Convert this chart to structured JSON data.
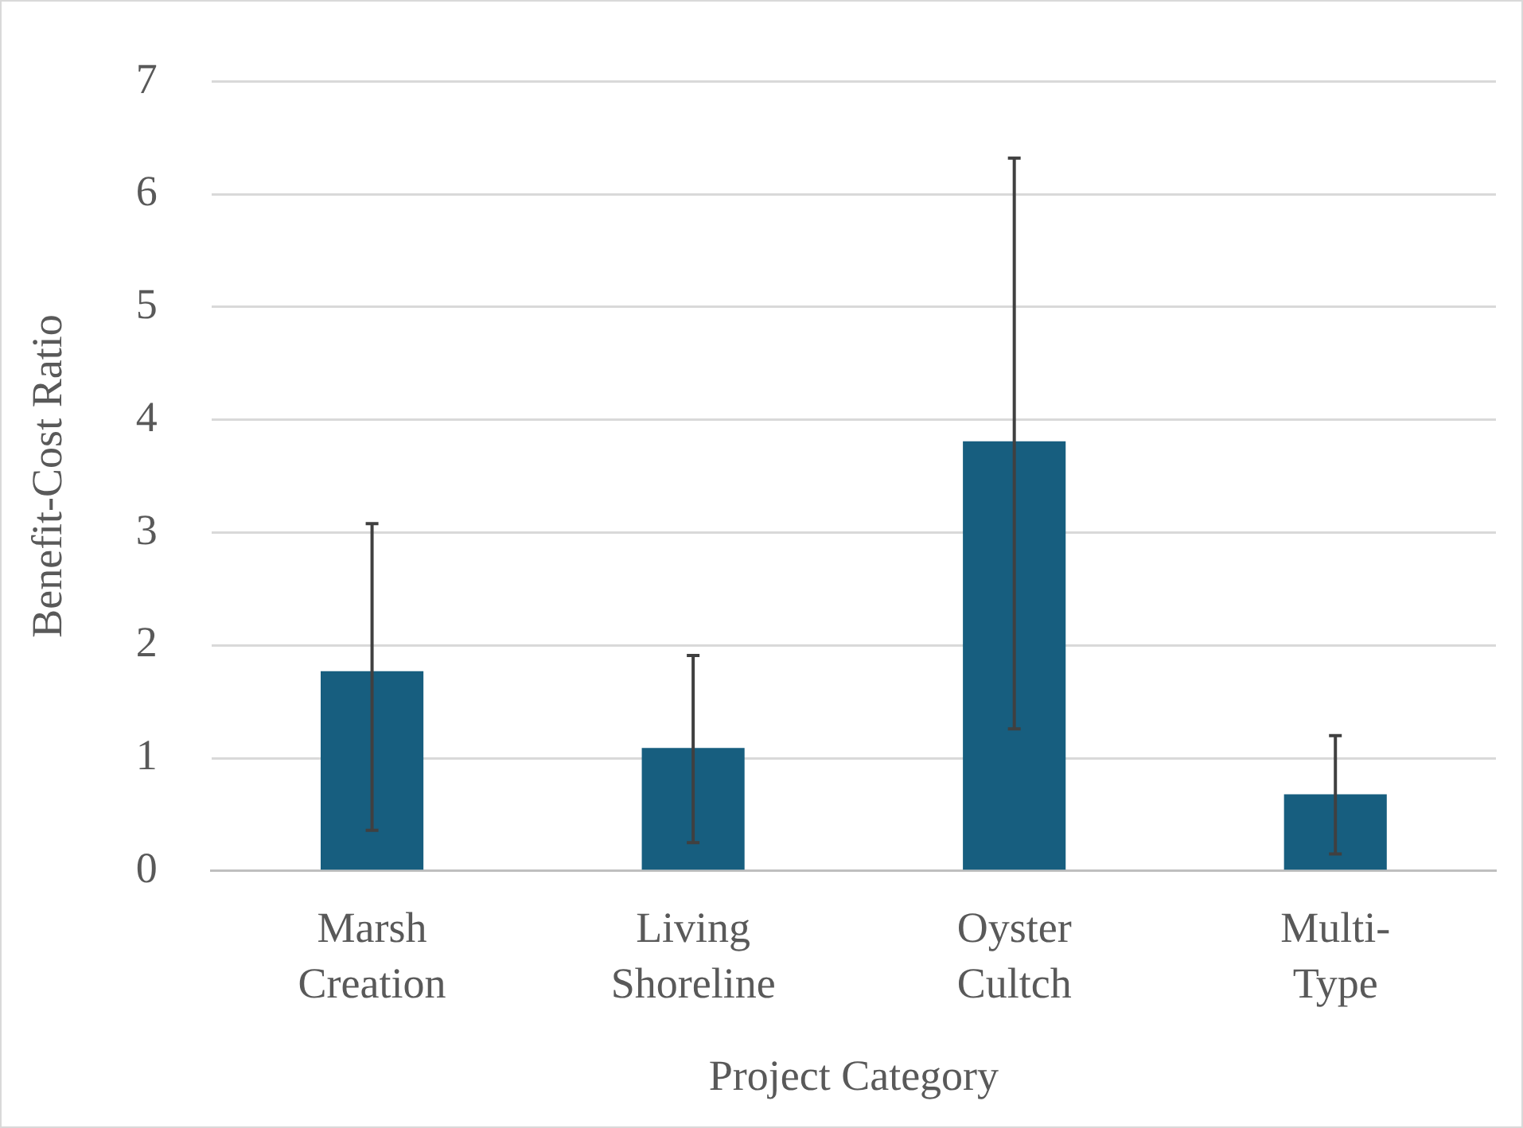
{
  "chart_data": {
    "type": "bar",
    "xlabel": "Project Category",
    "ylabel": "Benefit-Cost Ratio",
    "categories": [
      "Marsh Creation",
      "Living Shoreline",
      "Oyster Cultch",
      "Multi-Type"
    ],
    "values": [
      1.77,
      1.09,
      3.81,
      0.68
    ],
    "errors": [
      [
        0.36,
        3.08
      ],
      [
        0.25,
        1.91
      ],
      [
        1.26,
        6.32
      ],
      [
        0.15,
        1.2
      ]
    ],
    "color": "#175e7f",
    "ylim": [
      0,
      7
    ],
    "yticks": [
      0,
      1,
      2,
      3,
      4,
      5,
      6,
      7
    ],
    "grid": "y",
    "legend": false
  }
}
